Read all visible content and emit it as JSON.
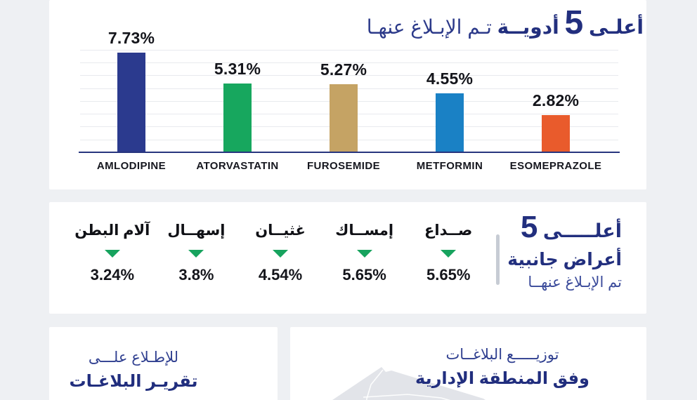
{
  "page": {
    "background": "#eef0f3",
    "panel_background": "#ffffff",
    "language": "ar"
  },
  "colors": {
    "navy_bold_text": "#212e7e",
    "light_navy_text": "#2f3f90",
    "dark_text": "#14151b",
    "green_marker": "#17a35e",
    "gridline": "#e8eaee",
    "axis_baseline": "#27357e",
    "divider": "#c7ccd4",
    "map_fill": "#e2e4e9"
  },
  "top_drugs_section": {
    "title_prefix": "أعلـى",
    "title_number": "5",
    "title_main": "أدويــة",
    "title_suffix": "تـم الإبـلاغ عنهـا"
  },
  "side_effects_section": {
    "title_prefix": "أعلـــــى",
    "title_number": "5",
    "title_line2": "أعراض جانبية",
    "title_line3": "تم الإبـلاغ عنهــا"
  },
  "reports_link_section": {
    "line1": "للإطـلاع علـــى",
    "line2": "تقريـر البلاغـات"
  },
  "distribution_section": {
    "line1": "توزيـــــع البلاغــات",
    "line2": "وفق المنطقة الإدارية"
  },
  "chart_data": [
    {
      "type": "bar",
      "title": "أعلى 5 أدوية تم الإبلاغ عنها",
      "title_en": "Top 5 reported drugs",
      "categories": [
        "AMLODIPINE",
        "ATORVASTATIN",
        "FUROSEMIDE",
        "METFORMIN",
        "ESOMEPRAZOLE"
      ],
      "values": [
        7.73,
        5.31,
        5.27,
        4.55,
        2.82
      ],
      "value_labels": [
        "7.73%",
        "5.31%",
        "5.27%",
        "4.55%",
        "2.82%"
      ],
      "unit": "%",
      "bar_colors": [
        "#2b3a8e",
        "#17a75e",
        "#c5a364",
        "#1a81c5",
        "#e95b2c"
      ],
      "ylim": [
        0,
        8
      ],
      "grid_step": 1,
      "grid": "horizontal",
      "legend": "none",
      "xlabel": "",
      "ylabel": ""
    },
    {
      "type": "bar",
      "title": "أعلى 5 أعراض جانبية تم الإبلاغ عنها",
      "title_en": "Top 5 reported side effects",
      "categories": [
        "صداع",
        "إمساك",
        "غثيان",
        "إسهال",
        "آلام البطن"
      ],
      "display_labels": [
        "صــداع",
        "إمســاك",
        "غثيــان",
        "إسهــال",
        "آلام البطن"
      ],
      "values": [
        5.65,
        5.65,
        4.54,
        3.8,
        3.24
      ],
      "value_labels": [
        "5.65%",
        "5.65%",
        "4.54%",
        "3.8%",
        "3.24%"
      ],
      "marker": "green-down-triangle",
      "unit": "%",
      "legend": "none"
    }
  ]
}
